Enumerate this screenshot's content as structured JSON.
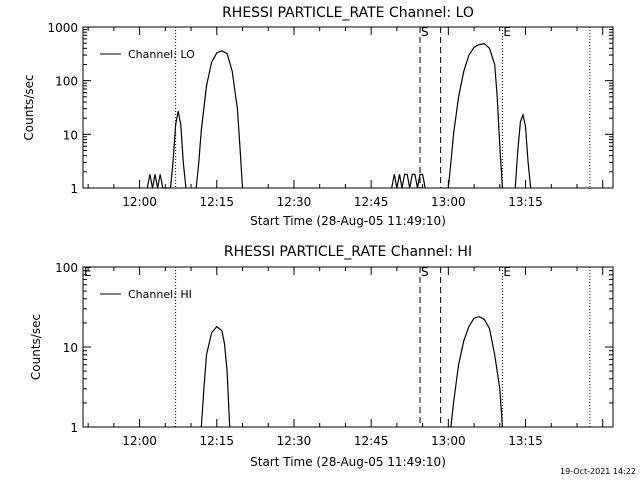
{
  "chart_data": [
    {
      "type": "line",
      "title": "RHESSI PARTICLE_RATE Channel: LO",
      "xlabel": "Start Time (28-Aug-05 11:49:10)",
      "ylabel": "Counts/sec",
      "yscale": "log",
      "xlim": [
        "11:49",
        "13:32"
      ],
      "ylim": [
        1,
        1000
      ],
      "x_ticks": [
        "12:00",
        "12:15",
        "12:30",
        "12:45",
        "13:00",
        "13:15"
      ],
      "y_ticks": [
        "1",
        "10",
        "100",
        "1000"
      ],
      "legend": "top-left",
      "series": [
        {
          "name": "Channel: LO",
          "color": "#000000",
          "points": [
            [
              "12:01:30",
              1
            ],
            [
              "12:02:00",
              1.8
            ],
            [
              "12:02:30",
              1
            ],
            [
              "12:03:00",
              1.8
            ],
            [
              "12:03:30",
              1
            ],
            [
              "12:04:00",
              1.8
            ],
            [
              "12:04:30",
              1
            ],
            [
              "12:06:00",
              1
            ],
            [
              "12:06:30",
              3
            ],
            [
              "12:07:00",
              15
            ],
            [
              "12:07:30",
              27
            ],
            [
              "12:08:00",
              15
            ],
            [
              "12:08:30",
              3
            ],
            [
              "12:09:00",
              1
            ],
            [
              "12:11:00",
              1
            ],
            [
              "12:11:30",
              3
            ],
            [
              "12:12:00",
              12
            ],
            [
              "12:13:00",
              80
            ],
            [
              "12:14:00",
              220
            ],
            [
              "12:15:00",
              330
            ],
            [
              "12:16:00",
              360
            ],
            [
              "12:17:00",
              320
            ],
            [
              "12:18:00",
              150
            ],
            [
              "12:19:00",
              30
            ],
            [
              "12:19:30",
              6
            ],
            [
              "12:20:00",
              1
            ],
            [
              "12:49:00",
              1
            ],
            [
              "12:49:30",
              1.8
            ],
            [
              "12:50:00",
              1
            ],
            [
              "12:50:30",
              1.8
            ],
            [
              "12:51:00",
              1
            ],
            [
              "12:51:30",
              1.8
            ],
            [
              "12:52:00",
              1.8
            ],
            [
              "12:52:30",
              1
            ],
            [
              "12:53:00",
              1.8
            ],
            [
              "12:53:30",
              1.8
            ],
            [
              "12:54:00",
              1
            ],
            [
              "12:54:30",
              1.8
            ],
            [
              "12:55:00",
              1.8
            ],
            [
              "12:55:30",
              1
            ],
            [
              "13:00:00",
              1
            ],
            [
              "13:00:30",
              3
            ],
            [
              "13:01:00",
              10
            ],
            [
              "13:02:00",
              50
            ],
            [
              "13:03:00",
              150
            ],
            [
              "13:04:00",
              300
            ],
            [
              "13:05:00",
              420
            ],
            [
              "13:06:00",
              470
            ],
            [
              "13:07:00",
              490
            ],
            [
              "13:08:00",
              400
            ],
            [
              "13:09:00",
              200
            ],
            [
              "13:09:30",
              50
            ],
            [
              "13:10:00",
              6
            ],
            [
              "13:10:30",
              1
            ],
            [
              "13:13:00",
              1
            ],
            [
              "13:13:30",
              5
            ],
            [
              "13:14:00",
              17
            ],
            [
              "13:14:30",
              23
            ],
            [
              "13:15:00",
              14
            ],
            [
              "13:15:30",
              3
            ],
            [
              "13:16:00",
              1
            ]
          ]
        }
      ],
      "annotations": [
        {
          "label": "S",
          "time": "12:54:30",
          "style": "dashed"
        },
        {
          "label": "",
          "time": "12:58:30",
          "style": "dashed"
        },
        {
          "label": "",
          "time": "12:07:00",
          "style": "dotted"
        },
        {
          "label": "E",
          "time": "13:10:30",
          "style": "dotted"
        },
        {
          "label": "",
          "time": "13:27:30",
          "style": "dotted"
        }
      ]
    },
    {
      "type": "line",
      "title": "RHESSI PARTICLE_RATE Channel: HI",
      "xlabel": "Start Time (28-Aug-05 11:49:10)",
      "ylabel": "Counts/sec",
      "yscale": "log",
      "xlim": [
        "11:49",
        "13:32"
      ],
      "ylim": [
        1,
        100
      ],
      "x_ticks": [
        "12:00",
        "12:15",
        "12:30",
        "12:45",
        "13:00",
        "13:15"
      ],
      "y_ticks": [
        "1",
        "10",
        "100"
      ],
      "legend": "top-left",
      "series": [
        {
          "name": "Channel: HI",
          "color": "#000000",
          "points": [
            [
              "12:12:00",
              1
            ],
            [
              "12:12:30",
              3
            ],
            [
              "12:13:00",
              8
            ],
            [
              "12:14:00",
              15
            ],
            [
              "12:15:00",
              18
            ],
            [
              "12:16:00",
              16
            ],
            [
              "12:16:30",
              11
            ],
            [
              "12:17:00",
              5
            ],
            [
              "12:17:30",
              1
            ],
            [
              "13:00:30",
              1
            ],
            [
              "13:01:00",
              2
            ],
            [
              "13:02:00",
              6
            ],
            [
              "13:03:00",
              12
            ],
            [
              "13:04:00",
              18
            ],
            [
              "13:05:00",
              23
            ],
            [
              "13:06:00",
              24
            ],
            [
              "13:07:00",
              22
            ],
            [
              "13:08:00",
              17
            ],
            [
              "13:09:00",
              8
            ],
            [
              "13:10:00",
              3
            ],
            [
              "13:10:30",
              1
            ]
          ]
        }
      ],
      "annotations": [
        {
          "label": "E",
          "time": "11:49:00",
          "style": "none"
        },
        {
          "label": "S",
          "time": "12:54:30",
          "style": "dashed"
        },
        {
          "label": "",
          "time": "12:58:30",
          "style": "dashed"
        },
        {
          "label": "",
          "time": "12:07:00",
          "style": "dotted"
        },
        {
          "label": "E",
          "time": "13:10:30",
          "style": "dotted"
        },
        {
          "label": "",
          "time": "13:27:30",
          "style": "dotted"
        }
      ]
    }
  ],
  "footer": {
    "timestamp": "19-Oct-2021 14:22"
  }
}
